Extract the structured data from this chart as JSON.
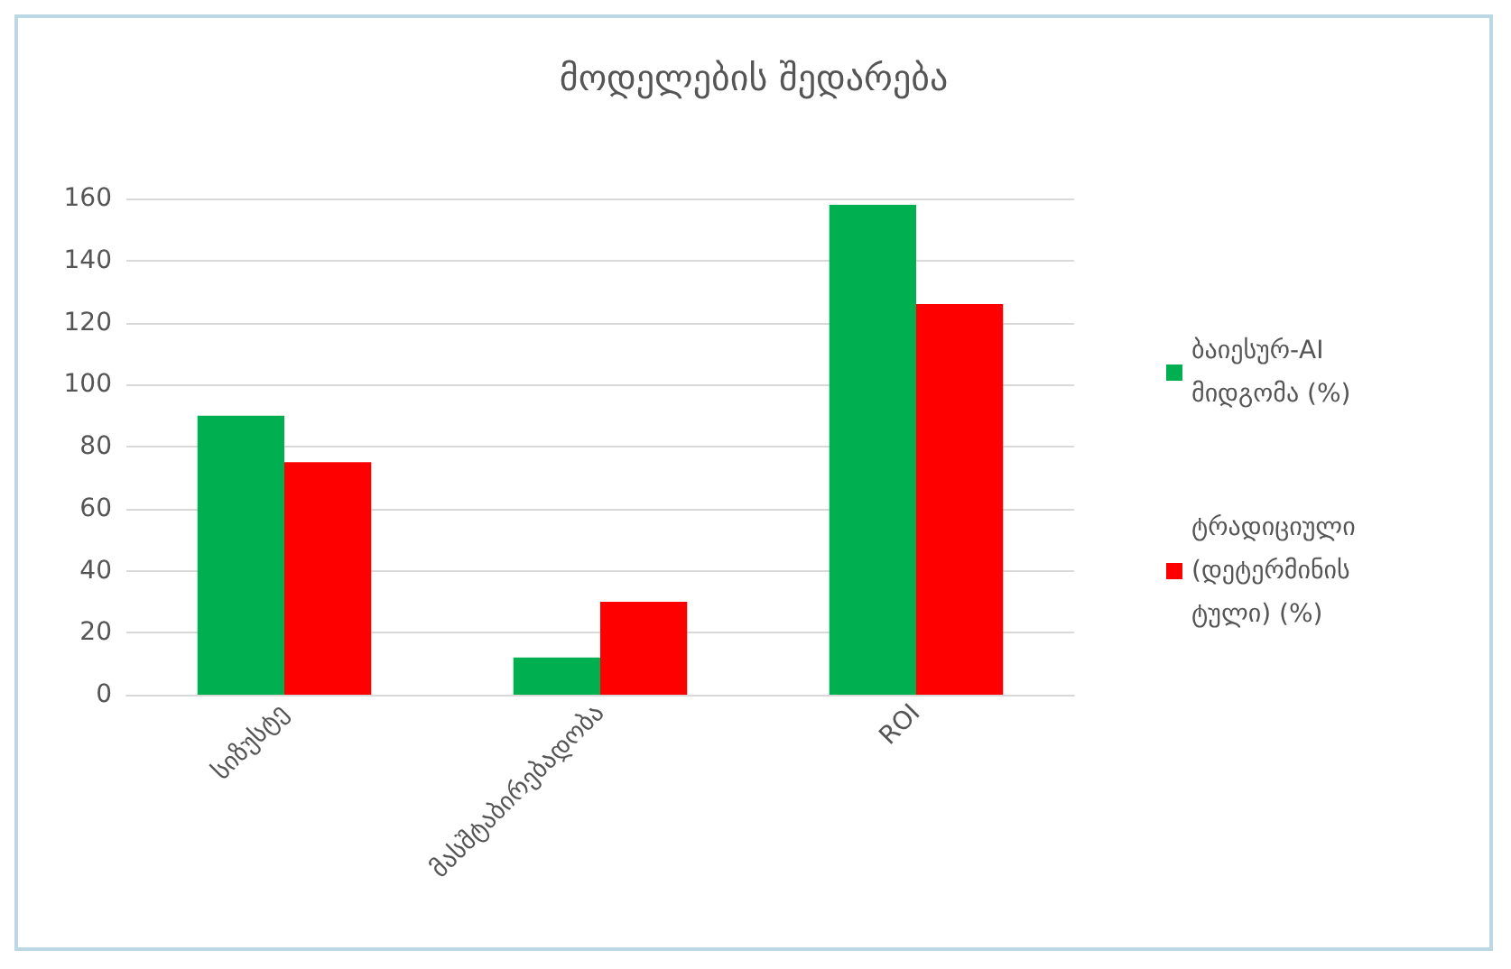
{
  "chart_data": {
    "type": "bar",
    "title": "მოდელების შედარება",
    "categories": [
      "სიზუსტე",
      "მასშტაბირებადობა",
      "ROI"
    ],
    "series": [
      {
        "name": "ბაიესურ-AI მიდგომა (%)",
        "color": "#00b050",
        "values": [
          90,
          12,
          158
        ]
      },
      {
        "name": "ტრადიციული (დეტერმინისტული) (%)",
        "color": "#ff0000",
        "values": [
          75,
          30,
          126
        ]
      }
    ],
    "ylim": [
      0,
      160
    ],
    "yticks": [
      0,
      20,
      40,
      60,
      80,
      100,
      120,
      140,
      160
    ],
    "grid": "y",
    "legend": "right"
  }
}
